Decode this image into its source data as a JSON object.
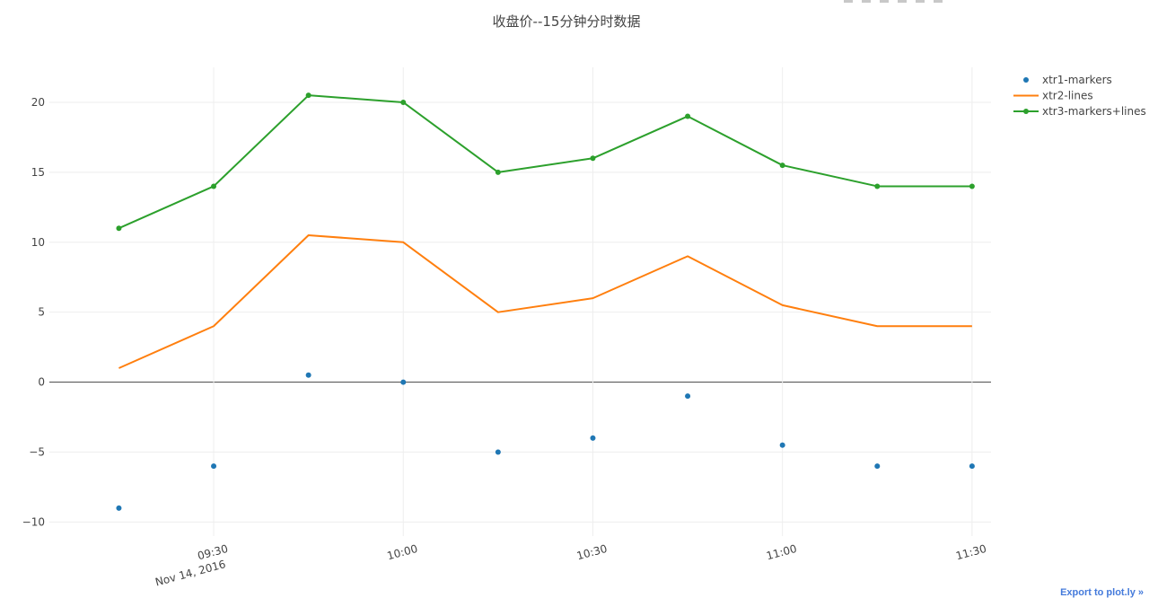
{
  "ui": {
    "export_label": "Export to plot.ly »"
  },
  "chart_data": {
    "type": "line",
    "title": "收盘价--15分钟分时数据",
    "xlabel": "",
    "ylabel": "",
    "x": [
      "09:15",
      "09:30",
      "09:45",
      "10:00",
      "10:15",
      "10:30",
      "10:45",
      "11:00",
      "11:15",
      "11:30"
    ],
    "date": "Nov 14, 2016",
    "xlim": [
      "09:04",
      "11:33"
    ],
    "ylim": [
      -11,
      22.5
    ],
    "x_ticks": [
      {
        "time": "09:30",
        "label": "09:30",
        "sublabel": "Nov 14, 2016"
      },
      {
        "time": "10:00",
        "label": "10:00",
        "sublabel": ""
      },
      {
        "time": "10:30",
        "label": "10:30",
        "sublabel": ""
      },
      {
        "time": "11:00",
        "label": "11:00",
        "sublabel": ""
      },
      {
        "time": "11:30",
        "label": "11:30",
        "sublabel": ""
      }
    ],
    "y_ticks": [
      -10,
      -5,
      0,
      5,
      10,
      15,
      20
    ],
    "y_tick_labels": [
      "−10",
      "−5",
      "0",
      "5",
      "10",
      "15",
      "20"
    ],
    "grid": true,
    "legend_position": "top-right",
    "series": [
      {
        "name": "xtr1-markers",
        "mode": "markers",
        "color": "#1f77b4",
        "values": [
          -9,
          -6,
          0.5,
          0,
          -5,
          -4,
          -1,
          -4.5,
          -6,
          -6
        ]
      },
      {
        "name": "xtr2-lines",
        "mode": "lines",
        "color": "#ff7f0e",
        "values": [
          1,
          4,
          10.5,
          10,
          5,
          6,
          9,
          5.5,
          4,
          4
        ]
      },
      {
        "name": "xtr3-markers+lines",
        "mode": "markers+lines",
        "color": "#2ca02c",
        "values": [
          11,
          14,
          20.5,
          20,
          15,
          16,
          19,
          15.5,
          14,
          14
        ]
      }
    ]
  }
}
